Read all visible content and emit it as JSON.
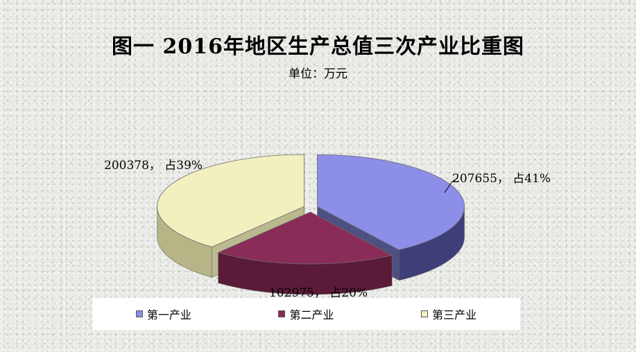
{
  "title": "图一 2016年地区生产总值三次产业比重图",
  "subtitle": "单位：万元",
  "chart_data": {
    "type": "pie",
    "categories": [
      "第一产业",
      "第二产业",
      "第三产业"
    ],
    "values": [
      207655,
      102975,
      200378
    ],
    "percents": [
      41,
      20,
      39
    ],
    "labels": [
      "207655， 占41%",
      "102975， 占20%",
      "200378， 占39%"
    ],
    "colors": [
      "#8c8ee8",
      "#8a2c58",
      "#f3f0c0"
    ],
    "side_colors": [
      "#3e3f78",
      "#5a1a38",
      "#b7b486"
    ],
    "legend_position": "bottom",
    "exploded": true,
    "three_d": true
  }
}
